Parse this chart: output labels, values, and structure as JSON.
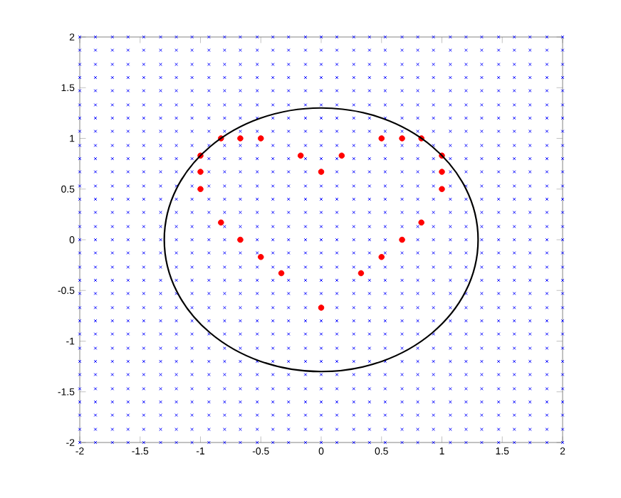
{
  "chart_data": {
    "type": "scatter",
    "xlim": [
      -2,
      2
    ],
    "ylim": [
      -2,
      2
    ],
    "xticks": [
      -2,
      -1.5,
      -1,
      -0.5,
      0,
      0.5,
      1,
      1.5,
      2
    ],
    "yticks": [
      -2,
      -1.5,
      -1,
      -0.5,
      0,
      0.5,
      1,
      1.5,
      2
    ],
    "grid": false,
    "series": [
      {
        "color": "#0000ff",
        "marker": "cross",
        "x": [
          -2,
          -1.87,
          -1.73,
          -1.6,
          -1.47,
          -1.33,
          -1.2,
          -1.07,
          -0.93,
          -0.8,
          -0.67,
          -0.53,
          -0.4,
          -0.27,
          -0.13,
          0,
          0.13,
          0.27,
          0.4,
          0.53,
          0.67,
          0.8,
          0.93,
          1.07,
          1.2,
          1.33,
          1.47,
          1.6,
          1.73,
          1.87,
          2,
          -2,
          -1.87,
          -1.73,
          -1.6,
          -1.47,
          -1.33,
          -1.2,
          -1.07,
          -0.93,
          -0.8,
          -0.67,
          -0.53,
          -0.4,
          -0.27,
          -0.13,
          0,
          0.13,
          0.27,
          0.4,
          0.53,
          0.67,
          0.8,
          0.93,
          1.07,
          1.2,
          1.33,
          1.47,
          1.6,
          1.73,
          1.87,
          2,
          -2,
          -1.87,
          -1.73,
          -1.6,
          -1.47,
          -1.33,
          -1.2,
          -1.07,
          -0.93,
          -0.8,
          -0.67,
          -0.53,
          -0.4,
          -0.27,
          -0.13,
          0,
          0.13,
          0.27,
          0.4,
          0.53,
          0.67,
          0.8,
          0.93,
          1.07,
          1.2,
          1.33,
          1.47,
          1.6,
          1.73,
          1.87,
          2,
          -2,
          -1.87,
          -1.73,
          -1.6,
          -1.47,
          -1.33,
          -1.2,
          -1.07,
          -0.93,
          -0.8,
          -0.67,
          -0.53,
          -0.4,
          -0.27,
          -0.13,
          0,
          0.13,
          0.27,
          0.4,
          0.53,
          0.67,
          0.8,
          0.93,
          1.07,
          1.2,
          1.33,
          1.47,
          1.6,
          1.73,
          1.87,
          2,
          -2,
          -1.87,
          -1.73,
          -1.6,
          -1.47,
          -1.33,
          -1.2,
          -1.07,
          -0.93,
          -0.8,
          -0.67,
          -0.53,
          -0.4,
          -0.27,
          -0.13,
          0,
          0.13,
          0.27,
          0.4,
          0.53,
          0.67,
          0.8,
          0.93,
          1.07,
          1.2,
          1.33,
          1.47,
          1.6,
          1.73,
          1.87,
          2,
          -2,
          -1.87,
          -1.73,
          -1.6,
          -1.47,
          -1.33,
          -1.2,
          -1.07,
          -0.93,
          -0.8,
          -0.67,
          -0.53,
          -0.4,
          -0.27,
          -0.13,
          0,
          0.13,
          0.27,
          0.4,
          0.53,
          0.67,
          0.8,
          0.93,
          1.07,
          1.2,
          1.33,
          1.47,
          1.6,
          1.73,
          1.87,
          2,
          -2,
          -1.87,
          -1.73,
          -1.6,
          -1.47,
          -1.33,
          -1.2,
          -1.07,
          -0.93,
          -0.8,
          -0.67,
          -0.53,
          -0.4,
          -0.27,
          -0.13,
          0,
          0.13,
          0.27,
          0.4,
          0.53,
          0.67,
          0.8,
          0.93,
          1.07,
          1.2,
          1.33,
          1.47,
          1.6,
          1.73,
          1.87,
          2,
          -2,
          -1.87,
          -1.73,
          -1.6,
          -1.47,
          -1.33,
          -1.2,
          -1.07,
          -0.93,
          -0.8,
          -0.67,
          -0.53,
          -0.4,
          -0.27,
          -0.13,
          0,
          0.13,
          0.27,
          0.4,
          0.53,
          0.67,
          0.8,
          0.93,
          1.07,
          1.2,
          1.33,
          1.47,
          1.6,
          1.73,
          1.87,
          2,
          -2,
          -1.87,
          -1.73,
          -1.6,
          -1.47,
          -1.33,
          -1.2,
          -1.07,
          -0.93,
          -0.8,
          -0.67,
          -0.53,
          -0.4,
          -0.27,
          -0.13,
          0,
          0.13,
          0.27,
          0.4,
          0.53,
          0.67,
          0.8,
          0.93,
          1.07,
          1.2,
          1.33,
          1.47,
          1.6,
          1.73,
          1.87,
          2,
          -2,
          -1.87,
          -1.73,
          -1.6,
          -1.47,
          -1.33,
          -1.2,
          -1.07,
          -0.93,
          -0.8,
          -0.67,
          -0.53,
          -0.4,
          -0.27,
          -0.13,
          0,
          0.13,
          0.27,
          0.4,
          0.53,
          0.67,
          0.8,
          0.93,
          1.07,
          1.2,
          1.33,
          1.47,
          1.6,
          1.73,
          1.87,
          2,
          -2,
          -1.87,
          -1.73,
          -1.6,
          -1.47,
          -1.33,
          -1.2,
          -1.07,
          -0.93,
          -0.8,
          -0.67,
          -0.53,
          -0.4,
          -0.27,
          -0.13,
          0,
          0.13,
          0.27,
          0.4,
          0.53,
          0.67,
          0.8,
          0.93,
          1.07,
          1.2,
          1.33,
          1.47,
          1.6,
          1.73,
          1.87,
          2,
          -2,
          -1.87,
          -1.73,
          -1.6,
          -1.47,
          -1.33,
          -1.2,
          -1.07,
          -0.93,
          -0.8,
          -0.67,
          -0.53,
          -0.4,
          -0.27,
          -0.13,
          0,
          0.13,
          0.27,
          0.4,
          0.53,
          0.67,
          0.8,
          0.93,
          1.07,
          1.2,
          1.33,
          1.47,
          1.6,
          1.73,
          1.87,
          2,
          -2,
          -1.87,
          -1.73,
          -1.6,
          -1.47,
          -1.33,
          -1.2,
          -1.07,
          -0.93,
          -0.8,
          -0.67,
          -0.53,
          -0.4,
          -0.27,
          -0.13,
          0,
          0.13,
          0.27,
          0.4,
          0.53,
          0.67,
          0.8,
          0.93,
          1.07,
          1.2,
          1.33,
          1.47,
          1.6,
          1.73,
          1.87,
          2,
          -2,
          -1.87,
          -1.73,
          -1.6,
          -1.47,
          -1.33,
          -1.2,
          -1.07,
          -0.93,
          -0.8,
          -0.67,
          -0.53,
          -0.4,
          -0.27,
          -0.13,
          0,
          0.13,
          0.27,
          0.4,
          0.53,
          0.67,
          0.8,
          0.93,
          1.07,
          1.2,
          1.33,
          1.47,
          1.6,
          1.73,
          1.87,
          2,
          -2,
          -1.87,
          -1.73,
          -1.6,
          -1.47,
          -1.33,
          -1.2,
          -1.07,
          -0.93,
          -0.8,
          -0.67,
          -0.53,
          -0.4,
          -0.27,
          -0.13,
          0,
          0.13,
          0.27,
          0.4,
          0.53,
          0.67,
          0.8,
          0.93,
          1.07,
          1.2,
          1.33,
          1.47,
          1.6,
          1.73,
          1.87,
          2,
          -2,
          -1.87,
          -1.73,
          -1.6,
          -1.47,
          -1.33,
          -1.2,
          -1.07,
          -0.93,
          -0.8,
          -0.67,
          -0.53,
          -0.4,
          -0.27,
          -0.13,
          0,
          0.13,
          0.27,
          0.4,
          0.53,
          0.67,
          0.8,
          0.93,
          1.07,
          1.2,
          1.33,
          1.47,
          1.6,
          1.73,
          1.87,
          2,
          -2,
          -1.87,
          -1.73,
          -1.6,
          -1.47,
          -1.33,
          -1.2,
          -1.07,
          -0.93,
          -0.8,
          -0.67,
          -0.53,
          -0.4,
          -0.27,
          -0.13,
          0,
          0.13,
          0.27,
          0.4,
          0.53,
          0.67,
          0.8,
          0.93,
          1.07,
          1.2,
          1.33,
          1.47,
          1.6,
          1.73,
          1.87,
          2,
          -2,
          -1.87,
          -1.73,
          -1.6,
          -1.47,
          -1.33,
          -1.2,
          -1.07,
          -0.93,
          -0.8,
          -0.67,
          -0.53,
          -0.4,
          -0.27,
          -0.13,
          0,
          0.13,
          0.27,
          0.4,
          0.53,
          0.67,
          0.8,
          0.93,
          1.07,
          1.2,
          1.33,
          1.47,
          1.6,
          1.73,
          1.87,
          2,
          -2,
          -1.87,
          -1.73,
          -1.6,
          -1.47,
          -1.33,
          -1.2,
          -1.07,
          -0.93,
          -0.8,
          -0.67,
          -0.53,
          -0.4,
          -0.27,
          -0.13,
          0,
          0.13,
          0.27,
          0.4,
          0.53,
          0.67,
          0.8,
          0.93,
          1.07,
          1.2,
          1.33,
          1.47,
          1.6,
          1.73,
          1.87,
          2,
          -2,
          -1.87,
          -1.73,
          -1.6,
          -1.47,
          -1.33,
          -1.2,
          -1.07,
          -0.93,
          -0.8,
          -0.67,
          -0.53,
          -0.4,
          -0.27,
          -0.13,
          0,
          0.13,
          0.27,
          0.4,
          0.53,
          0.67,
          0.8,
          0.93,
          1.07,
          1.2,
          1.33,
          1.47,
          1.6,
          1.73,
          1.87,
          2,
          -2,
          -1.87,
          -1.73,
          -1.6,
          -1.47,
          -1.33,
          -1.2,
          -1.07,
          -0.93,
          -0.8,
          -0.67,
          -0.53,
          -0.4,
          -0.27,
          -0.13,
          0,
          0.13,
          0.27,
          0.4,
          0.53,
          0.67,
          0.8,
          0.93,
          1.07,
          1.2,
          1.33,
          1.47,
          1.6,
          1.73,
          1.87,
          2,
          -2,
          -1.87,
          -1.73,
          -1.6,
          -1.47,
          -1.33,
          -1.2,
          -1.07,
          -0.93,
          -0.8,
          -0.67,
          -0.53,
          -0.4,
          -0.27,
          -0.13,
          0,
          0.13,
          0.27,
          0.4,
          0.53,
          0.67,
          0.8,
          0.93,
          1.07,
          1.2,
          1.33,
          1.47,
          1.6,
          1.73,
          1.87,
          2,
          -2,
          -1.87,
          -1.73,
          -1.6,
          -1.47,
          -1.33,
          -1.2,
          -1.07,
          -0.93,
          -0.8,
          -0.67,
          -0.53,
          -0.4,
          -0.27,
          -0.13,
          0,
          0.13,
          0.27,
          0.4,
          0.53,
          0.67,
          0.8,
          0.93,
          1.07,
          1.2,
          1.33,
          1.47,
          1.6,
          1.73,
          1.87,
          2,
          -2,
          -1.87,
          -1.73,
          -1.6,
          -1.47,
          -1.33,
          -1.2,
          -1.07,
          -0.93,
          -0.8,
          -0.67,
          -0.53,
          -0.4,
          -0.27,
          -0.13,
          0,
          0.13,
          0.27,
          0.4,
          0.53,
          0.67,
          0.8,
          0.93,
          1.07,
          1.2,
          1.33,
          1.47,
          1.6,
          1.73,
          1.87,
          2,
          -2,
          -1.87,
          -1.73,
          -1.6,
          -1.47,
          -1.33,
          -1.2,
          -1.07,
          -0.93,
          -0.8,
          -0.67,
          -0.53,
          -0.4,
          -0.27,
          -0.13,
          0,
          0.13,
          0.27,
          0.4,
          0.53,
          0.67,
          0.8,
          0.93,
          1.07,
          1.2,
          1.33,
          1.47,
          1.6,
          1.73,
          1.87,
          2,
          -2,
          -1.87,
          -1.73,
          -1.6,
          -1.47,
          -1.33,
          -1.2,
          -1.07,
          -0.93,
          -0.8,
          -0.67,
          -0.53,
          -0.4,
          -0.27,
          -0.13,
          0,
          0.13,
          0.27,
          0.4,
          0.53,
          0.67,
          0.8,
          0.93,
          1.07,
          1.2,
          1.33,
          1.47,
          1.6,
          1.73,
          1.87,
          2,
          -2,
          -1.87,
          -1.73,
          -1.6,
          -1.47,
          -1.33,
          -1.2,
          -1.07,
          -0.93,
          -0.8,
          -0.67,
          -0.53,
          -0.4,
          -0.27,
          -0.13,
          0,
          0.13,
          0.27,
          0.4,
          0.53,
          0.67,
          0.8,
          0.93,
          1.07,
          1.2,
          1.33,
          1.47,
          1.6,
          1.73,
          1.87,
          2,
          -2,
          -1.87,
          -1.73,
          -1.6,
          -1.47,
          -1.33,
          -1.2,
          -1.07,
          -0.93,
          -0.8,
          -0.67,
          -0.53,
          -0.4,
          -0.27,
          -0.13,
          0,
          0.13,
          0.27,
          0.4,
          0.53,
          0.67,
          0.8,
          0.93,
          1.07,
          1.2,
          1.33,
          1.47,
          1.6,
          1.73,
          1.87,
          2,
          -2,
          -1.87,
          -1.73,
          -1.6,
          -1.47,
          -1.33,
          -1.2,
          -1.07,
          -0.93,
          -0.8,
          -0.67,
          -0.53,
          -0.4,
          -0.27,
          -0.13,
          0,
          0.13,
          0.27,
          0.4,
          0.53,
          0.67,
          0.8,
          0.93,
          1.07,
          1.2,
          1.33,
          1.47,
          1.6,
          1.73,
          1.87,
          2,
          -2,
          -1.87,
          -1.73,
          -1.6,
          -1.47,
          -1.33,
          -1.2,
          -1.07,
          -0.93,
          -0.8,
          -0.67,
          -0.53,
          -0.4,
          -0.27,
          -0.13,
          0,
          0.13,
          0.27,
          0.4,
          0.53,
          0.67,
          0.8,
          0.93,
          1.07,
          1.2,
          1.33,
          1.47,
          1.6,
          1.73,
          1.87,
          2,
          -2,
          -1.87,
          -1.73,
          -1.6,
          -1.47,
          -1.33,
          -1.2,
          -1.07,
          -0.93,
          -0.8,
          -0.67,
          -0.53,
          -0.4,
          -0.27,
          -0.13,
          0,
          0.13,
          0.27,
          0.4,
          0.53,
          0.67,
          0.8,
          0.93,
          1.07,
          1.2,
          1.33,
          1.47,
          1.6,
          1.73,
          1.87,
          2
        ],
        "values": [
          -2,
          -2,
          -2,
          -2,
          -2,
          -2,
          -2,
          -2,
          -2,
          -2,
          -2,
          -2,
          -2,
          -2,
          -2,
          -2,
          -2,
          -2,
          -2,
          -2,
          -2,
          -2,
          -2,
          -2,
          -2,
          -2,
          -2,
          -2,
          -2,
          -2,
          -2,
          -1.87,
          -1.87,
          -1.87,
          -1.87,
          -1.87,
          -1.87,
          -1.87,
          -1.87,
          -1.87,
          -1.87,
          -1.87,
          -1.87,
          -1.87,
          -1.87,
          -1.87,
          -1.87,
          -1.87,
          -1.87,
          -1.87,
          -1.87,
          -1.87,
          -1.87,
          -1.87,
          -1.87,
          -1.87,
          -1.87,
          -1.87,
          -1.87,
          -1.87,
          -1.87,
          -1.87,
          -1.73,
          -1.73,
          -1.73,
          -1.73,
          -1.73,
          -1.73,
          -1.73,
          -1.73,
          -1.73,
          -1.73,
          -1.73,
          -1.73,
          -1.73,
          -1.73,
          -1.73,
          -1.73,
          -1.73,
          -1.73,
          -1.73,
          -1.73,
          -1.73,
          -1.73,
          -1.73,
          -1.73,
          -1.73,
          -1.73,
          -1.73,
          -1.73,
          -1.73,
          -1.73,
          -1.73,
          -1.6,
          -1.6,
          -1.6,
          -1.6,
          -1.6,
          -1.6,
          -1.6,
          -1.6,
          -1.6,
          -1.6,
          -1.6,
          -1.6,
          -1.6,
          -1.6,
          -1.6,
          -1.6,
          -1.6,
          -1.6,
          -1.6,
          -1.6,
          -1.6,
          -1.6,
          -1.6,
          -1.6,
          -1.6,
          -1.6,
          -1.6,
          -1.6,
          -1.6,
          -1.6,
          -1.6,
          -1.47,
          -1.47,
          -1.47,
          -1.47,
          -1.47,
          -1.47,
          -1.47,
          -1.47,
          -1.47,
          -1.47,
          -1.47,
          -1.47,
          -1.47,
          -1.47,
          -1.47,
          -1.47,
          -1.47,
          -1.47,
          -1.47,
          -1.47,
          -1.47,
          -1.47,
          -1.47,
          -1.47,
          -1.47,
          -1.47,
          -1.47,
          -1.47,
          -1.47,
          -1.47,
          -1.47,
          -1.33,
          -1.33,
          -1.33,
          -1.33,
          -1.33,
          -1.33,
          -1.33,
          -1.33,
          -1.33,
          -1.33,
          -1.33,
          -1.33,
          -1.33,
          -1.33,
          -1.33,
          -1.33,
          -1.33,
          -1.33,
          -1.33,
          -1.33,
          -1.33,
          -1.33,
          -1.33,
          -1.33,
          -1.33,
          -1.33,
          -1.33,
          -1.33,
          -1.33,
          -1.33,
          -1.33,
          -1.2,
          -1.2,
          -1.2,
          -1.2,
          -1.2,
          -1.2,
          -1.2,
          -1.2,
          -1.2,
          -1.2,
          -1.2,
          -1.2,
          -1.2,
          -1.2,
          -1.2,
          -1.2,
          -1.2,
          -1.2,
          -1.2,
          -1.2,
          -1.2,
          -1.2,
          -1.2,
          -1.2,
          -1.2,
          -1.2,
          -1.2,
          -1.2,
          -1.2,
          -1.2,
          -1.2,
          -1.07,
          -1.07,
          -1.07,
          -1.07,
          -1.07,
          -1.07,
          -1.07,
          -1.07,
          -1.07,
          -1.07,
          -1.07,
          -1.07,
          -1.07,
          -1.07,
          -1.07,
          -1.07,
          -1.07,
          -1.07,
          -1.07,
          -1.07,
          -1.07,
          -1.07,
          -1.07,
          -1.07,
          -1.07,
          -1.07,
          -1.07,
          -1.07,
          -1.07,
          -1.07,
          -1.07,
          -0.93,
          -0.93,
          -0.93,
          -0.93,
          -0.93,
          -0.93,
          -0.93,
          -0.93,
          -0.93,
          -0.93,
          -0.93,
          -0.93,
          -0.93,
          -0.93,
          -0.93,
          -0.93,
          -0.93,
          -0.93,
          -0.93,
          -0.93,
          -0.93,
          -0.93,
          -0.93,
          -0.93,
          -0.93,
          -0.93,
          -0.93,
          -0.93,
          -0.93,
          -0.93,
          -0.93,
          -0.8,
          -0.8,
          -0.8,
          -0.8,
          -0.8,
          -0.8,
          -0.8,
          -0.8,
          -0.8,
          -0.8,
          -0.8,
          -0.8,
          -0.8,
          -0.8,
          -0.8,
          -0.8,
          -0.8,
          -0.8,
          -0.8,
          -0.8,
          -0.8,
          -0.8,
          -0.8,
          -0.8,
          -0.8,
          -0.8,
          -0.8,
          -0.8,
          -0.8,
          -0.8,
          -0.8,
          -0.67,
          -0.67,
          -0.67,
          -0.67,
          -0.67,
          -0.67,
          -0.67,
          -0.67,
          -0.67,
          -0.67,
          -0.67,
          -0.67,
          -0.67,
          -0.67,
          -0.67,
          null,
          -0.67,
          -0.67,
          -0.67,
          -0.67,
          -0.67,
          -0.67,
          -0.67,
          -0.67,
          -0.67,
          -0.67,
          -0.67,
          -0.67,
          -0.67,
          -0.67,
          -0.67,
          -0.53,
          -0.53,
          -0.53,
          -0.53,
          -0.53,
          -0.53,
          -0.53,
          -0.53,
          -0.53,
          -0.53,
          -0.53,
          -0.53,
          -0.53,
          -0.53,
          -0.53,
          -0.53,
          -0.53,
          -0.53,
          -0.53,
          -0.53,
          -0.53,
          -0.53,
          -0.53,
          -0.53,
          -0.53,
          -0.53,
          -0.53,
          -0.53,
          -0.53,
          -0.53,
          -0.53,
          -0.4,
          -0.4,
          -0.4,
          -0.4,
          -0.4,
          -0.4,
          -0.4,
          -0.4,
          -0.4,
          -0.4,
          -0.4,
          -0.4,
          -0.4,
          -0.4,
          -0.4,
          -0.4,
          -0.4,
          -0.4,
          -0.4,
          -0.4,
          -0.4,
          -0.4,
          -0.4,
          -0.4,
          -0.4,
          -0.4,
          -0.4,
          -0.4,
          -0.4,
          -0.4,
          -0.4,
          -0.27,
          -0.27,
          -0.27,
          -0.27,
          -0.27,
          -0.27,
          -0.27,
          -0.27,
          -0.27,
          -0.27,
          -0.27,
          -0.27,
          -0.27,
          -0.27,
          -0.27,
          -0.27,
          -0.27,
          -0.27,
          -0.27,
          -0.27,
          -0.27,
          -0.27,
          -0.27,
          -0.27,
          -0.27,
          -0.27,
          -0.27,
          -0.27,
          -0.27,
          -0.27,
          -0.27,
          -0.13,
          -0.13,
          -0.13,
          -0.13,
          -0.13,
          -0.13,
          -0.13,
          -0.13,
          -0.13,
          -0.13,
          -0.13,
          -0.13,
          -0.13,
          -0.13,
          -0.13,
          -0.13,
          -0.13,
          -0.13,
          -0.13,
          -0.13,
          -0.13,
          -0.13,
          -0.13,
          -0.13,
          -0.13,
          -0.13,
          -0.13,
          -0.13,
          -0.13,
          -0.13,
          -0.13,
          0,
          0,
          0,
          0,
          0,
          0,
          0,
          0,
          0,
          0,
          null,
          0,
          0,
          0,
          0,
          0,
          0,
          0,
          0,
          0,
          null,
          0,
          0,
          0,
          0,
          0,
          0,
          0,
          0,
          0,
          0,
          0.13,
          0.13,
          0.13,
          0.13,
          0.13,
          0.13,
          0.13,
          0.13,
          0.13,
          0.13,
          0.13,
          0.13,
          0.13,
          0.13,
          0.13,
          0.13,
          0.13,
          0.13,
          0.13,
          0.13,
          0.13,
          0.13,
          0.13,
          0.13,
          0.13,
          0.13,
          0.13,
          0.13,
          0.13,
          0.13,
          0.13,
          0.27,
          0.27,
          0.27,
          0.27,
          0.27,
          0.27,
          0.27,
          0.27,
          0.27,
          0.27,
          0.27,
          0.27,
          0.27,
          0.27,
          0.27,
          0.27,
          0.27,
          0.27,
          0.27,
          0.27,
          0.27,
          0.27,
          0.27,
          0.27,
          0.27,
          0.27,
          0.27,
          0.27,
          0.27,
          0.27,
          0.27,
          0.4,
          0.4,
          0.4,
          0.4,
          0.4,
          0.4,
          0.4,
          0.4,
          0.4,
          0.4,
          0.4,
          0.4,
          0.4,
          0.4,
          0.4,
          0.4,
          0.4,
          0.4,
          0.4,
          0.4,
          0.4,
          0.4,
          0.4,
          0.4,
          0.4,
          0.4,
          0.4,
          0.4,
          0.4,
          0.4,
          0.4,
          0.53,
          0.53,
          0.53,
          0.53,
          0.53,
          0.53,
          0.53,
          0.53,
          0.53,
          0.53,
          0.53,
          0.53,
          0.53,
          0.53,
          0.53,
          0.53,
          0.53,
          0.53,
          0.53,
          0.53,
          0.53,
          0.53,
          0.53,
          0.53,
          0.53,
          0.53,
          0.53,
          0.53,
          0.53,
          0.53,
          0.53,
          0.67,
          0.67,
          0.67,
          0.67,
          0.67,
          0.67,
          0.67,
          0.67,
          0.67,
          0.67,
          0.67,
          0.67,
          0.67,
          0.67,
          0.67,
          null,
          0.67,
          0.67,
          0.67,
          0.67,
          0.67,
          0.67,
          0.67,
          0.67,
          0.67,
          0.67,
          0.67,
          0.67,
          0.67,
          0.67,
          0.67,
          0.8,
          0.8,
          0.8,
          0.8,
          0.8,
          0.8,
          0.8,
          0.8,
          0.8,
          0.8,
          0.8,
          0.8,
          0.8,
          0.8,
          0.8,
          0.8,
          0.8,
          0.8,
          0.8,
          0.8,
          0.8,
          0.8,
          0.8,
          0.8,
          0.8,
          0.8,
          0.8,
          0.8,
          0.8,
          0.8,
          0.8,
          0.93,
          0.93,
          0.93,
          0.93,
          0.93,
          0.93,
          0.93,
          0.93,
          0.93,
          0.93,
          0.93,
          0.93,
          0.93,
          0.93,
          0.93,
          0.93,
          0.93,
          0.93,
          0.93,
          0.93,
          0.93,
          0.93,
          0.93,
          0.93,
          0.93,
          0.93,
          0.93,
          0.93,
          0.93,
          0.93,
          0.93,
          1.07,
          1.07,
          1.07,
          1.07,
          1.07,
          1.07,
          1.07,
          1.07,
          1.07,
          1.07,
          1.07,
          1.07,
          1.07,
          1.07,
          1.07,
          1.07,
          1.07,
          1.07,
          1.07,
          1.07,
          1.07,
          1.07,
          1.07,
          1.07,
          1.07,
          1.07,
          1.07,
          1.07,
          1.07,
          1.07,
          1.07,
          1.2,
          1.2,
          1.2,
          1.2,
          1.2,
          1.2,
          1.2,
          1.2,
          1.2,
          1.2,
          1.2,
          1.2,
          1.2,
          1.2,
          1.2,
          1.2,
          1.2,
          1.2,
          1.2,
          1.2,
          1.2,
          1.2,
          1.2,
          1.2,
          1.2,
          1.2,
          1.2,
          1.2,
          1.2,
          1.2,
          1.2,
          1.33,
          1.33,
          1.33,
          1.33,
          1.33,
          1.33,
          1.33,
          1.33,
          1.33,
          1.33,
          1.33,
          1.33,
          1.33,
          1.33,
          1.33,
          1.33,
          1.33,
          1.33,
          1.33,
          1.33,
          1.33,
          1.33,
          1.33,
          1.33,
          1.33,
          1.33,
          1.33,
          1.33,
          1.33,
          1.33,
          1.33,
          1.47,
          1.47,
          1.47,
          1.47,
          1.47,
          1.47,
          1.47,
          1.47,
          1.47,
          1.47,
          1.47,
          1.47,
          1.47,
          1.47,
          1.47,
          1.47,
          1.47,
          1.47,
          1.47,
          1.47,
          1.47,
          1.47,
          1.47,
          1.47,
          1.47,
          1.47,
          1.47,
          1.47,
          1.47,
          1.47,
          1.47,
          1.6,
          1.6,
          1.6,
          1.6,
          1.6,
          1.6,
          1.6,
          1.6,
          1.6,
          1.6,
          1.6,
          1.6,
          1.6,
          1.6,
          1.6,
          1.6,
          1.6,
          1.6,
          1.6,
          1.6,
          1.6,
          1.6,
          1.6,
          1.6,
          1.6,
          1.6,
          1.6,
          1.6,
          1.6,
          1.6,
          1.6,
          1.73,
          1.73,
          1.73,
          1.73,
          1.73,
          1.73,
          1.73,
          1.73,
          1.73,
          1.73,
          1.73,
          1.73,
          1.73,
          1.73,
          1.73,
          1.73,
          1.73,
          1.73,
          1.73,
          1.73,
          1.73,
          1.73,
          1.73,
          1.73,
          1.73,
          1.73,
          1.73,
          1.73,
          1.73,
          1.73,
          1.73,
          1.87,
          1.87,
          1.87,
          1.87,
          1.87,
          1.87,
          1.87,
          1.87,
          1.87,
          1.87,
          1.87,
          1.87,
          1.87,
          1.87,
          1.87,
          1.87,
          1.87,
          1.87,
          1.87,
          1.87,
          1.87,
          1.87,
          1.87,
          1.87,
          1.87,
          1.87,
          1.87,
          1.87,
          1.87,
          1.87,
          1.87,
          2,
          2,
          2,
          2,
          2,
          2,
          2,
          2,
          2,
          2,
          2,
          2,
          2,
          2,
          2,
          2,
          2,
          2,
          2,
          2,
          2,
          2,
          2,
          2,
          2,
          2,
          2,
          2,
          2,
          2,
          2
        ]
      },
      {
        "color": "#ff0000",
        "marker": "circle",
        "x": [
          -0.83,
          -0.67,
          -0.5,
          0.5,
          0.67,
          0.83,
          -1,
          -0.17,
          0.17,
          1,
          -1,
          0,
          1,
          -1,
          1,
          -0.83,
          0.83,
          -0.67,
          0.67,
          -0.5,
          0.5,
          -0.33,
          0.33,
          0
        ],
        "values": [
          1,
          1,
          1,
          1,
          1,
          1,
          0.83,
          0.83,
          0.83,
          0.83,
          0.67,
          0.67,
          0.67,
          0.5,
          0.5,
          0.17,
          0.17,
          0,
          0,
          -0.17,
          -0.17,
          -0.33,
          -0.33,
          -0.67
        ]
      }
    ]
  }
}
